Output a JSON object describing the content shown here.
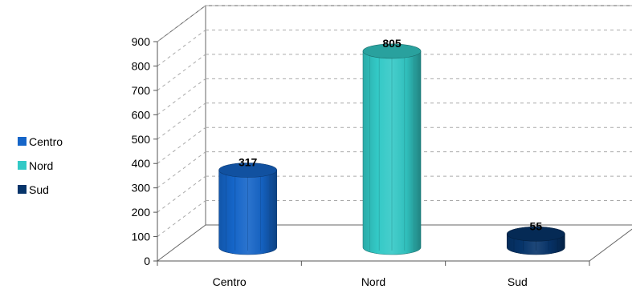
{
  "chart_data": {
    "type": "bar",
    "categories": [
      "Centro",
      "Nord",
      "Sud"
    ],
    "values": [
      317,
      805,
      55
    ],
    "colors": [
      "#1565C8",
      "#33C9C6",
      "#06346A"
    ],
    "ylim": [
      0,
      900
    ],
    "yticks": [
      0,
      100,
      200,
      300,
      400,
      500,
      600,
      700,
      800,
      900
    ],
    "yticks_labels": [
      "0",
      "100",
      "200",
      "300",
      "400",
      "500",
      "600",
      "700",
      "800",
      "900"
    ],
    "data_labels": [
      "317",
      "805",
      "55"
    ],
    "grid": true,
    "legend": {
      "position": "left",
      "entries": [
        "Centro",
        "Nord",
        "Sud"
      ]
    }
  }
}
